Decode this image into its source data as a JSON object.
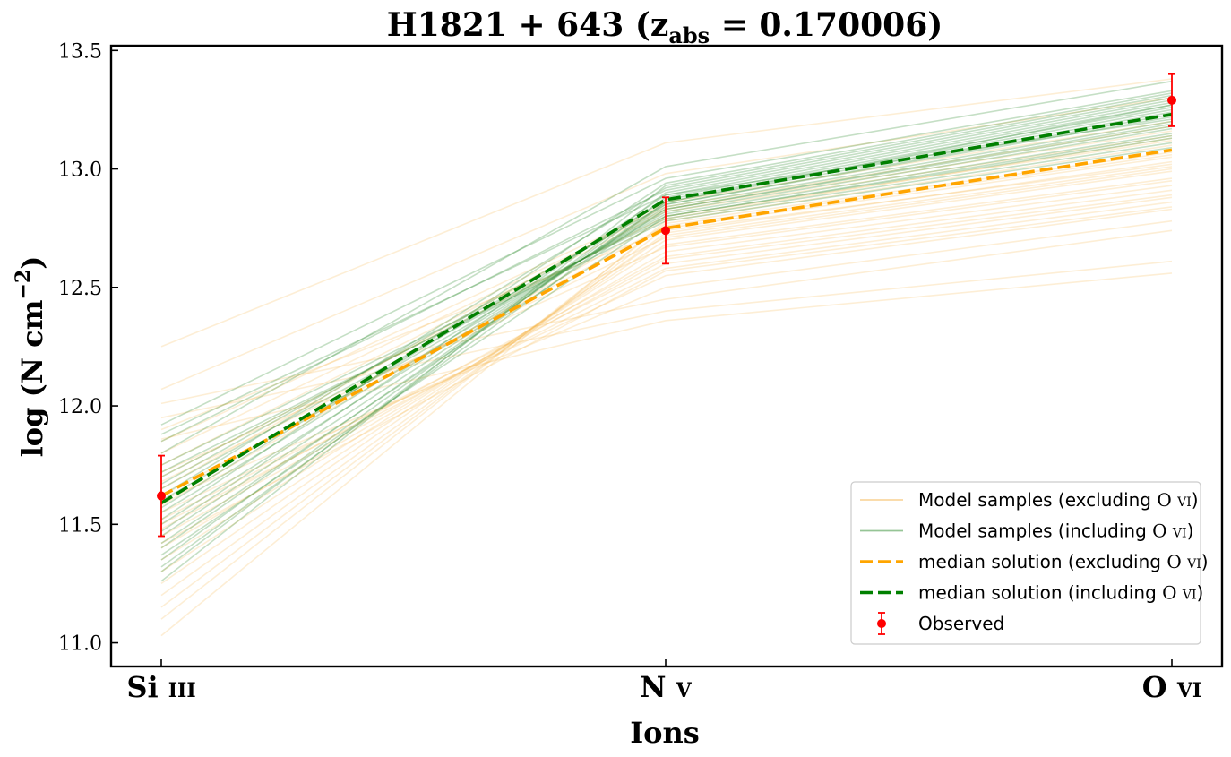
{
  "chart_data": {
    "type": "line",
    "title": "H1821 + 643 (z",
    "title_sub": "abs",
    "title_tail": " = 0.170006)",
    "xlabel": "Ions",
    "ylabel": "log (N cm",
    "ylabel_sup": "−2",
    "ylabel_tail": ")",
    "categories": [
      "Si iii",
      "N v",
      "O vi"
    ],
    "category_main": [
      "Si",
      "N",
      "O"
    ],
    "category_ion": [
      "iii",
      "v",
      "vi"
    ],
    "ylim": [
      10.9,
      13.52
    ],
    "yticks": [
      11.0,
      11.5,
      12.0,
      12.5,
      13.0,
      13.5
    ],
    "ytick_labels": [
      "11.0",
      "11.5",
      "12.0",
      "12.5",
      "13.0",
      "13.5"
    ],
    "grid": false,
    "legend_position": "lower-right",
    "series": [
      {
        "name": "median solution (excluding O vi)",
        "values": [
          11.62,
          12.75,
          13.08
        ],
        "color": "#FFA500",
        "style": "dashed"
      },
      {
        "name": "median solution (including O vi)",
        "values": [
          11.59,
          12.87,
          13.23
        ],
        "color": "#008000",
        "style": "dashed"
      }
    ],
    "observed": {
      "name": "Observed",
      "values": [
        11.62,
        12.74,
        13.29
      ],
      "err": [
        0.17,
        0.14,
        0.11
      ],
      "color": "#FF0000"
    },
    "samples_excluding": {
      "name": "Model samples (excluding O vi)",
      "color": "#F5B041",
      "lines": [
        [
          12.25,
          13.11,
          13.38
        ],
        [
          12.07,
          12.98,
          13.3
        ],
        [
          11.86,
          12.36,
          12.56
        ],
        [
          11.95,
          12.4,
          12.61
        ],
        [
          12.01,
          12.45,
          12.74
        ],
        [
          11.6,
          12.5,
          12.78
        ],
        [
          11.55,
          12.55,
          12.83
        ],
        [
          11.5,
          12.58,
          12.86
        ],
        [
          11.45,
          12.62,
          12.89
        ],
        [
          11.4,
          12.65,
          12.93
        ],
        [
          11.35,
          12.68,
          12.96
        ],
        [
          11.3,
          12.7,
          12.99
        ],
        [
          11.25,
          12.72,
          13.01
        ],
        [
          11.2,
          12.73,
          13.03
        ],
        [
          11.15,
          12.75,
          13.05
        ],
        [
          11.1,
          12.77,
          13.07
        ],
        [
          11.03,
          12.78,
          13.1
        ],
        [
          11.7,
          12.8,
          13.12
        ],
        [
          11.75,
          12.82,
          13.14
        ],
        [
          11.8,
          12.83,
          13.16
        ],
        [
          11.85,
          12.84,
          13.18
        ],
        [
          11.65,
          12.86,
          13.2
        ],
        [
          11.58,
          12.79,
          13.13
        ],
        [
          11.62,
          12.76,
          13.06
        ],
        [
          11.68,
          12.71,
          13.0
        ],
        [
          11.72,
          12.67,
          12.95
        ],
        [
          11.48,
          12.63,
          12.91
        ],
        [
          11.52,
          12.6,
          12.88
        ],
        [
          11.42,
          12.57,
          12.84
        ],
        [
          11.9,
          12.74,
          13.02
        ]
      ]
    },
    "samples_including": {
      "name": "Model samples (including O vi)",
      "color": "#2E8B2E",
      "lines": [
        [
          11.8,
          13.01,
          13.37
        ],
        [
          11.92,
          12.96,
          13.33
        ],
        [
          11.26,
          12.93,
          13.31
        ],
        [
          11.3,
          12.9,
          13.28
        ],
        [
          11.35,
          12.88,
          13.26
        ],
        [
          11.4,
          12.86,
          13.24
        ],
        [
          11.45,
          12.85,
          13.22
        ],
        [
          11.5,
          12.84,
          13.2
        ],
        [
          11.55,
          12.83,
          13.19
        ],
        [
          11.6,
          12.82,
          13.17
        ],
        [
          11.65,
          12.81,
          13.15
        ],
        [
          11.7,
          12.8,
          13.13
        ],
        [
          11.75,
          12.79,
          13.11
        ],
        [
          11.85,
          12.91,
          13.29
        ],
        [
          11.88,
          12.89,
          13.27
        ],
        [
          11.62,
          12.92,
          13.3
        ],
        [
          11.57,
          12.87,
          13.25
        ],
        [
          11.52,
          12.94,
          13.32
        ],
        [
          11.47,
          12.89,
          13.21
        ],
        [
          11.42,
          12.83,
          13.18
        ],
        [
          11.67,
          12.85,
          13.23
        ],
        [
          11.72,
          12.78,
          13.09
        ],
        [
          11.37,
          12.8,
          13.14
        ],
        [
          11.32,
          12.86,
          13.27
        ]
      ]
    },
    "legend": [
      {
        "label": "Model samples (excluding ",
        "ion": "O vi",
        "tail": ")",
        "kind": "thin",
        "color": "#F5B041"
      },
      {
        "label": "Model samples (including ",
        "ion": "O vi",
        "tail": ")",
        "kind": "thin",
        "color": "#2E8B2E"
      },
      {
        "label": "median solution (excluding ",
        "ion": "O vi",
        "tail": ")",
        "kind": "dashed",
        "color": "#FFA500"
      },
      {
        "label": "median solution (including ",
        "ion": "O vi",
        "tail": ")",
        "kind": "dashed",
        "color": "#008000"
      },
      {
        "label": "Observed",
        "ion": "",
        "tail": "",
        "kind": "marker",
        "color": "#FF0000"
      }
    ]
  }
}
